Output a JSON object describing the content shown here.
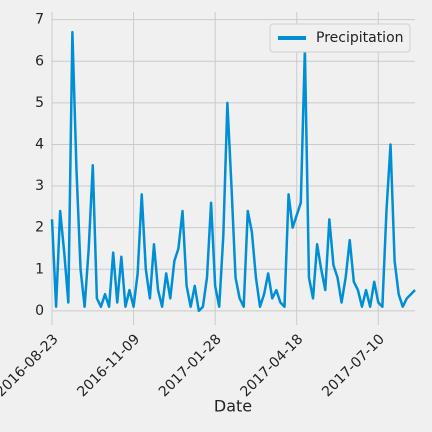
{
  "chart_data": {
    "type": "line",
    "x_label": "Date",
    "categories": [
      "2016-08-23",
      null,
      null,
      null,
      null,
      null,
      null,
      null,
      null,
      null,
      null,
      null,
      null,
      null,
      null,
      null,
      null,
      null,
      null,
      null,
      "2016-11-09",
      null,
      null,
      null,
      null,
      null,
      null,
      null,
      null,
      null,
      null,
      null,
      null,
      null,
      null,
      null,
      null,
      null,
      null,
      null,
      "2017-01-28",
      null,
      null,
      null,
      null,
      null,
      null,
      null,
      null,
      null,
      null,
      null,
      null,
      null,
      null,
      null,
      null,
      null,
      null,
      null,
      "2017-04-18",
      null,
      null,
      null,
      null,
      null,
      null,
      null,
      null,
      null,
      null,
      null,
      null,
      null,
      null,
      null,
      null,
      null,
      null,
      null,
      "2017-07-10",
      null,
      null,
      null,
      null,
      null,
      null,
      null,
      null,
      null
    ],
    "series": [
      {
        "name": "Precipitation",
        "color": "#008fd5",
        "values": [
          2.2,
          0.1,
          2.4,
          1.4,
          0.2,
          6.7,
          3.4,
          1.0,
          0.1,
          1.5,
          3.5,
          0.3,
          0.1,
          0.4,
          0.1,
          1.4,
          0.2,
          1.3,
          0.1,
          0.5,
          0.1,
          0.9,
          2.8,
          1.0,
          0.3,
          1.6,
          0.5,
          0.1,
          0.9,
          0.3,
          1.2,
          1.5,
          2.4,
          0.6,
          0.1,
          0.6,
          0.0,
          0.1,
          0.8,
          2.6,
          0.6,
          0.1,
          1.8,
          5.0,
          3.0,
          0.8,
          0.3,
          0.1,
          2.4,
          1.9,
          0.8,
          0.1,
          0.4,
          0.9,
          0.3,
          0.5,
          0.2,
          0.1,
          2.8,
          2.0,
          2.3,
          2.6,
          6.3,
          0.8,
          0.3,
          1.6,
          1.0,
          0.5,
          2.2,
          1.1,
          0.8,
          0.2,
          0.8,
          1.7,
          0.7,
          0.5,
          0.1,
          0.5,
          0.1,
          0.7,
          0.2,
          0.1,
          2.4,
          4.0,
          1.2,
          0.4,
          0.1,
          0.3,
          0.4,
          0.5
        ]
      }
    ],
    "ylim": [
      -0.34,
      7.04
    ],
    "yticks": [
      0,
      1,
      2,
      3,
      4,
      5,
      6,
      7
    ],
    "grid": true,
    "legend": "upper right"
  }
}
